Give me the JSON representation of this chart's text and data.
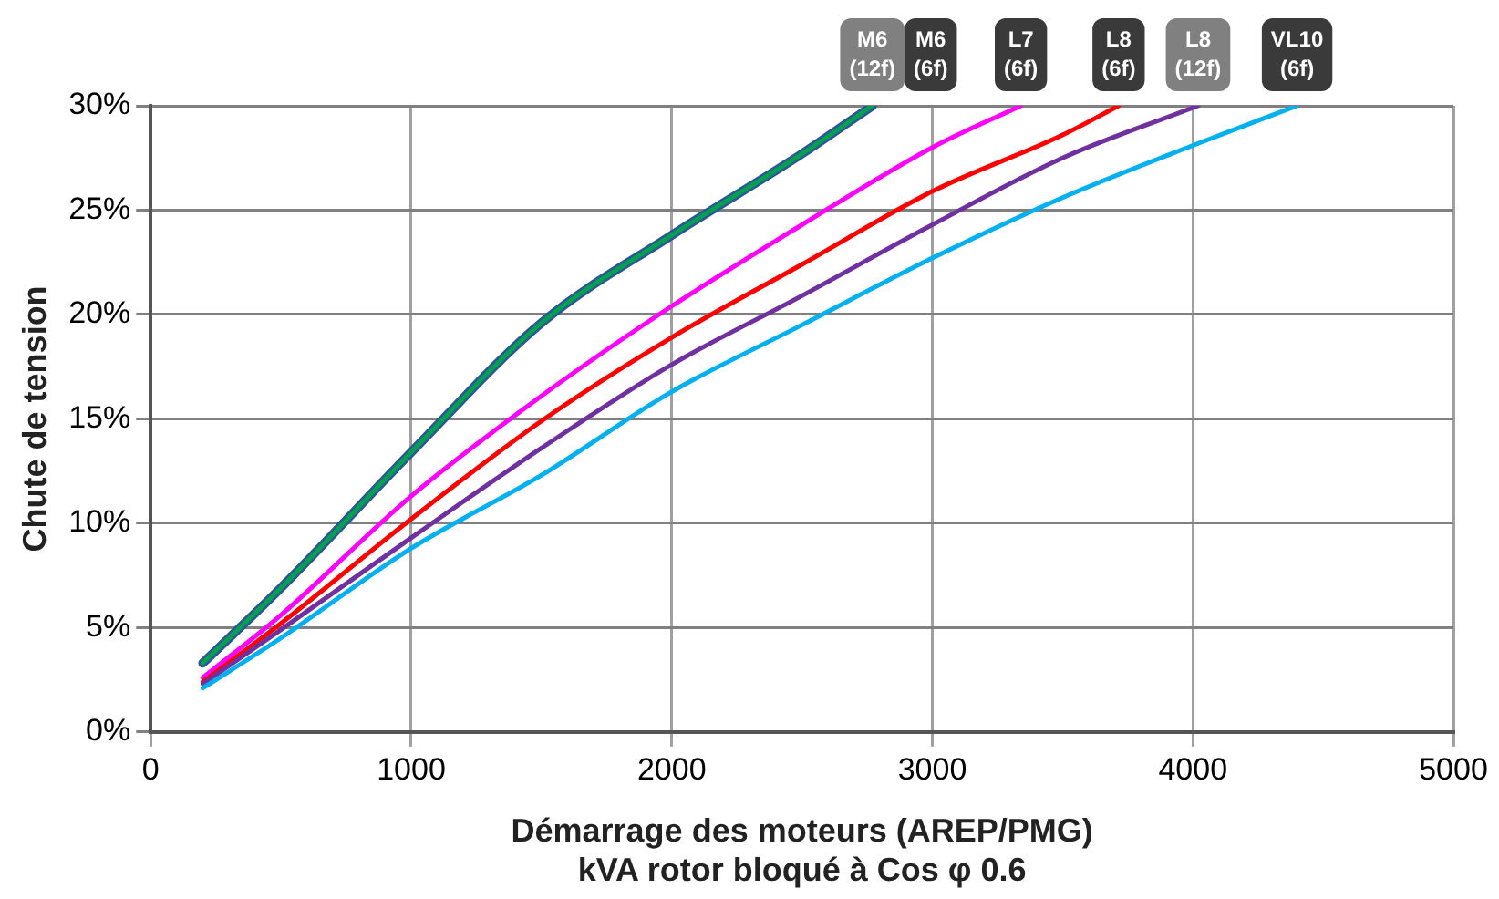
{
  "chart_data": {
    "type": "line",
    "xlabel": "Démarrage des moteurs (AREP/PMG)\nkVA rotor bloqué à Cos φ 0.6",
    "ylabel": "Chute de tension",
    "xlim": [
      0,
      5000
    ],
    "xticks": [
      0,
      1000,
      2000,
      3000,
      4000,
      5000
    ],
    "ylim": [
      0,
      30
    ],
    "yticks": [
      {
        "value": 0,
        "label": "0%"
      },
      {
        "value": 5,
        "label": "5%"
      },
      {
        "value": 10,
        "label": "10%"
      },
      {
        "value": 15,
        "label": "15%"
      },
      {
        "value": 20,
        "label": "20%"
      },
      {
        "value": 25,
        "label": "25%"
      },
      {
        "value": 30,
        "label": "30%"
      }
    ],
    "grid": true,
    "legend": false,
    "marker": "none",
    "line_style": "solid",
    "series": [
      {
        "name": "M6 (12f)",
        "color": "#2e5597",
        "x": [
          200,
          500,
          1000,
          1500,
          2000,
          2500,
          2770
        ],
        "values": [
          3.3,
          6.9,
          13.4,
          19.6,
          23.8,
          27.7,
          30
        ]
      },
      {
        "name": "M6 (6f)",
        "color": "#00a050",
        "x": [
          200,
          500,
          1000,
          1500,
          2000,
          2500,
          2770
        ],
        "values": [
          3.3,
          6.9,
          13.4,
          19.6,
          23.8,
          27.7,
          30
        ]
      },
      {
        "name": "L7 (6f)",
        "color": "#ff00ff",
        "x": [
          200,
          500,
          1000,
          1500,
          2000,
          2500,
          3000,
          3340
        ],
        "values": [
          2.6,
          5.6,
          11.3,
          16.1,
          20.4,
          24.3,
          28.0,
          30
        ]
      },
      {
        "name": "L8 (6f)",
        "color": "#ff0000",
        "x": [
          200,
          500,
          1000,
          1500,
          2000,
          2500,
          3000,
          3500,
          3715
        ],
        "values": [
          2.4,
          5.2,
          10.2,
          14.9,
          18.9,
          22.4,
          25.9,
          28.6,
          30
        ]
      },
      {
        "name": "L8 (12f)",
        "color": "#7030a0",
        "x": [
          200,
          500,
          1000,
          1500,
          2000,
          2500,
          3000,
          3500,
          4020
        ],
        "values": [
          2.3,
          4.9,
          9.3,
          13.6,
          17.6,
          20.9,
          24.3,
          27.5,
          30
        ]
      },
      {
        "name": "VL10 (6f)",
        "color": "#00b0f0",
        "x": [
          200,
          500,
          1000,
          1500,
          2000,
          2500,
          3000,
          3500,
          4000,
          4400
        ],
        "values": [
          2.1,
          4.5,
          8.8,
          12.3,
          16.3,
          19.5,
          22.7,
          25.6,
          28.1,
          30
        ]
      }
    ]
  }
}
